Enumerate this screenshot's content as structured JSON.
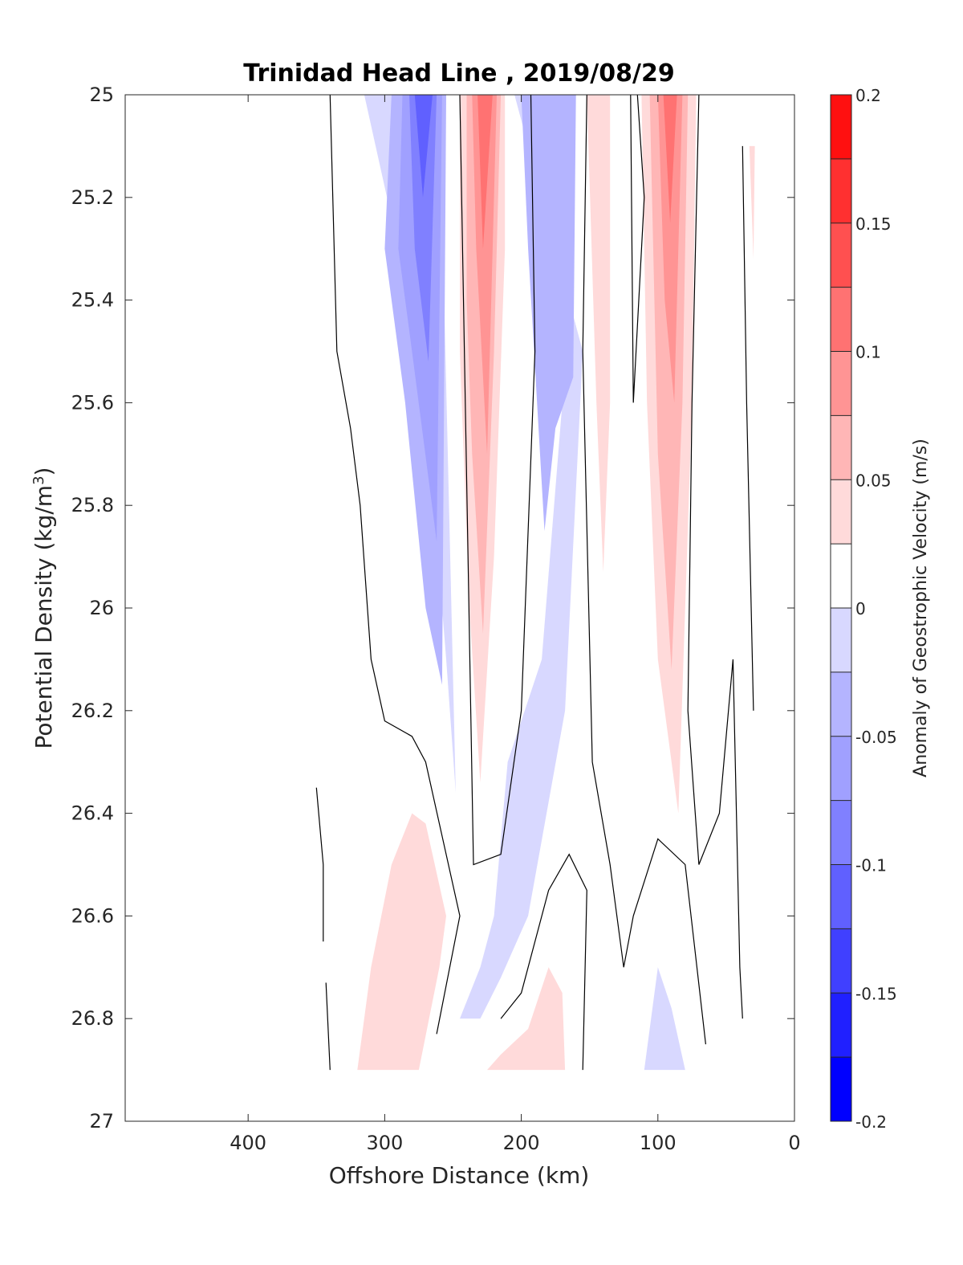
{
  "chart_data": {
    "type": "contourf",
    "title": "Trinidad Head Line , 2019/08/29",
    "xlabel": "Offshore Distance (km)",
    "ylabel": "Potential Density (kg/m",
    "ylabel_sup": "3",
    "ylabel_end": ")",
    "xlim": [
      490,
      0
    ],
    "ylim": [
      25,
      27
    ],
    "x_reversed": true,
    "y_reversed": true,
    "xticks": [
      400,
      300,
      200,
      100,
      0
    ],
    "xtick_labels": [
      "400",
      "300",
      "200",
      "100",
      "0"
    ],
    "yticks": [
      25,
      25.2,
      25.4,
      25.6,
      25.8,
      26,
      26.2,
      26.4,
      26.6,
      26.8,
      27
    ],
    "ytick_labels": [
      "25",
      "25.2",
      "25.4",
      "25.6",
      "25.8",
      "26",
      "26.2",
      "26.4",
      "26.6",
      "26.8",
      "27"
    ],
    "colorbar": {
      "label": "Anomaly of Geostrophic Velocity (m/s)",
      "range": [
        -0.2,
        0.2
      ],
      "levels": [
        -0.2,
        -0.175,
        -0.15,
        -0.125,
        -0.1,
        -0.075,
        -0.05,
        -0.025,
        0,
        0.025,
        0.05,
        0.075,
        0.1,
        0.125,
        0.15,
        0.175,
        0.2
      ],
      "colors": [
        "#0000ff",
        "#2020ff",
        "#4040ff",
        "#6060ff",
        "#8080ff",
        "#a0a0ff",
        "#b4b4ff",
        "#d8d8ff",
        "#ffffff",
        "#ffdada",
        "#ffb6b6",
        "#ff9494",
        "#ff7272",
        "#ff5050",
        "#ff3030",
        "#ff1010"
      ],
      "ticks": [
        -0.2,
        -0.15,
        -0.1,
        -0.05,
        0,
        0.05,
        0.1,
        0.15,
        0.2
      ],
      "tick_labels": [
        "-0.2",
        "-0.15",
        "-0.1",
        "-0.05",
        "0",
        "0.05",
        "0.1",
        "0.15",
        "0.2"
      ]
    },
    "regions": [
      {
        "name": "negative-jet-offshore",
        "level": -0.025,
        "points": [
          [
            315,
            25
          ],
          [
            260,
            25
          ],
          [
            248,
            26.36
          ],
          [
            255,
            26.1
          ],
          [
            270,
            25.6
          ],
          [
            290,
            25.3
          ]
        ]
      },
      {
        "name": "negative-jet-offshore",
        "level": -0.05,
        "points": [
          [
            295,
            25
          ],
          [
            255,
            25
          ],
          [
            258,
            26.15
          ],
          [
            270,
            26
          ],
          [
            285,
            25.6
          ],
          [
            300,
            25.3
          ]
        ]
      },
      {
        "name": "negative-jet-offshore",
        "level": -0.075,
        "points": [
          [
            287,
            25
          ],
          [
            258,
            25
          ],
          [
            262,
            25.87
          ],
          [
            280,
            25.5
          ],
          [
            290,
            25.3
          ]
        ]
      },
      {
        "name": "negative-jet-offshore",
        "level": -0.1,
        "points": [
          [
            282,
            25
          ],
          [
            262,
            25
          ],
          [
            268,
            25.52
          ],
          [
            278,
            25.3
          ]
        ]
      },
      {
        "name": "negative-jet-offshore",
        "level": -0.125,
        "points": [
          [
            278,
            25
          ],
          [
            265,
            25
          ],
          [
            272,
            25.2
          ]
        ]
      },
      {
        "name": "positive-jet-mid",
        "level": 0.025,
        "points": [
          [
            245,
            25
          ],
          [
            212,
            25
          ],
          [
            212,
            25.3
          ],
          [
            220,
            25.9
          ],
          [
            230,
            26.34
          ],
          [
            238,
            26
          ],
          [
            245,
            25.5
          ]
        ]
      },
      {
        "name": "positive-jet-mid",
        "level": 0.05,
        "points": [
          [
            240,
            25
          ],
          [
            215,
            25
          ],
          [
            220,
            25.5
          ],
          [
            228,
            26.05
          ],
          [
            236,
            25.7
          ],
          [
            240,
            25.4
          ]
        ]
      },
      {
        "name": "positive-jet-mid",
        "level": 0.075,
        "points": [
          [
            236,
            25
          ],
          [
            218,
            25
          ],
          [
            225,
            25.7
          ],
          [
            233,
            25.3
          ]
        ]
      },
      {
        "name": "positive-jet-mid",
        "level": 0.1,
        "points": [
          [
            232,
            25
          ],
          [
            221,
            25
          ],
          [
            228,
            25.3
          ]
        ]
      },
      {
        "name": "negative-mid-core",
        "level": -0.025,
        "points": [
          [
            205,
            25
          ],
          [
            160,
            25
          ],
          [
            170,
            25.6
          ],
          [
            185,
            26.1
          ],
          [
            210,
            26.3
          ],
          [
            220,
            26.6
          ],
          [
            230,
            26.7
          ],
          [
            245,
            26.8
          ],
          [
            230,
            26.8
          ],
          [
            215,
            26.72
          ],
          [
            195,
            26.6
          ],
          [
            168,
            26.2
          ],
          [
            155,
            25.5
          ]
        ]
      },
      {
        "name": "negative-mid-core",
        "level": -0.05,
        "points": [
          [
            200,
            25
          ],
          [
            160,
            25
          ],
          [
            162,
            25.55
          ],
          [
            175,
            25.65
          ],
          [
            183,
            25.85
          ],
          [
            195,
            25.3
          ]
        ]
      },
      {
        "name": "positive-jet-nearshore-weak",
        "level": 0.025,
        "points": [
          [
            152,
            25
          ],
          [
            135,
            25
          ],
          [
            135,
            25.6
          ],
          [
            140,
            25.93
          ],
          [
            145,
            25.6
          ]
        ]
      },
      {
        "name": "positive-jet-nearshore",
        "level": 0.025,
        "points": [
          [
            112,
            25
          ],
          [
            72,
            25
          ],
          [
            75,
            25.6
          ],
          [
            85,
            26.4
          ],
          [
            100,
            26.1
          ],
          [
            108,
            25.6
          ]
        ]
      },
      {
        "name": "positive-jet-nearshore",
        "level": 0.05,
        "points": [
          [
            106,
            25
          ],
          [
            78,
            25
          ],
          [
            82,
            25.6
          ],
          [
            90,
            26.12
          ],
          [
            100,
            25.7
          ]
        ]
      },
      {
        "name": "positive-jet-nearshore",
        "level": 0.075,
        "points": [
          [
            100,
            25
          ],
          [
            82,
            25
          ],
          [
            88,
            25.6
          ],
          [
            95,
            25.4
          ]
        ]
      },
      {
        "name": "positive-jet-nearshore",
        "level": 0.1,
        "points": [
          [
            96,
            25
          ],
          [
            86,
            25
          ],
          [
            91,
            25.25
          ]
        ]
      },
      {
        "name": "positive-deep-offshore",
        "level": 0.025,
        "points": [
          [
            320,
            26.9
          ],
          [
            275,
            26.9
          ],
          [
            260,
            26.7
          ],
          [
            255,
            26.6
          ],
          [
            270,
            26.42
          ],
          [
            280,
            26.4
          ],
          [
            295,
            26.5
          ],
          [
            310,
            26.7
          ]
        ]
      },
      {
        "name": "positive-deep-mid",
        "level": 0.025,
        "points": [
          [
            225,
            26.9
          ],
          [
            168,
            26.9
          ],
          [
            170,
            26.75
          ],
          [
            180,
            26.7
          ],
          [
            195,
            26.82
          ],
          [
            215,
            26.87
          ]
        ]
      },
      {
        "name": "negative-deep-nearshore",
        "level": -0.025,
        "points": [
          [
            110,
            26.9
          ],
          [
            80,
            26.9
          ],
          [
            90,
            26.78
          ],
          [
            100,
            26.7
          ]
        ]
      },
      {
        "name": "positive-coastal-sliver",
        "level": 0.025,
        "points": [
          [
            33,
            25.1
          ],
          [
            29,
            25.1
          ],
          [
            30,
            25.32
          ]
        ]
      }
    ],
    "zero_contours": [
      [
        [
          340,
          25
        ],
        [
          335,
          25.5
        ],
        [
          325,
          25.65
        ],
        [
          318,
          25.8
        ],
        [
          310,
          26.1
        ],
        [
          300,
          26.22
        ],
        [
          280,
          26.25
        ],
        [
          270,
          26.3
        ],
        [
          245,
          26.6
        ],
        [
          262,
          26.83
        ]
      ],
      [
        [
          245,
          25
        ],
        [
          235,
          26.5
        ],
        [
          215,
          26.48
        ],
        [
          200,
          26.2
        ],
        [
          190,
          25.5
        ],
        [
          193,
          25
        ]
      ],
      [
        [
          152,
          25
        ],
        [
          155,
          25.5
        ],
        [
          148,
          26.3
        ],
        [
          135,
          26.5
        ],
        [
          125,
          26.7
        ],
        [
          118,
          26.6
        ],
        [
          100,
          26.45
        ],
        [
          80,
          26.5
        ],
        [
          65,
          26.85
        ]
      ],
      [
        [
          120,
          25
        ],
        [
          118,
          25.6
        ],
        [
          110,
          25.2
        ],
        [
          115,
          25
        ]
      ],
      [
        [
          215,
          26.8
        ],
        [
          200,
          26.75
        ],
        [
          180,
          26.55
        ],
        [
          165,
          26.48
        ],
        [
          152,
          26.55
        ],
        [
          155,
          26.9
        ]
      ],
      [
        [
          70,
          25
        ],
        [
          75,
          25.6
        ],
        [
          78,
          26.2
        ],
        [
          70,
          26.5
        ],
        [
          55,
          26.4
        ],
        [
          45,
          26.1
        ],
        [
          40,
          26.7
        ],
        [
          38,
          26.8
        ]
      ],
      [
        [
          38,
          25.1
        ],
        [
          35,
          25.6
        ],
        [
          30,
          26.2
        ]
      ],
      [
        [
          350,
          26.35
        ],
        [
          345,
          26.5
        ],
        [
          345,
          26.65
        ]
      ],
      [
        [
          343,
          26.73
        ],
        [
          340,
          26.9
        ]
      ]
    ]
  }
}
